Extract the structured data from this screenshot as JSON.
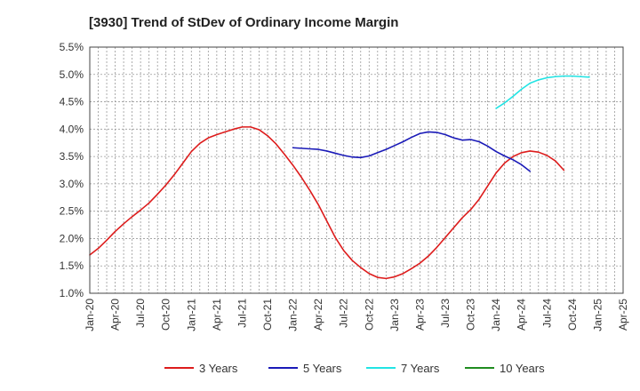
{
  "chart_data": {
    "type": "line",
    "title": "[3930]  Trend of StDev of Ordinary Income Margin",
    "xlabel": "",
    "ylabel": "",
    "ylim": [
      1.0,
      5.5
    ],
    "yticks": [
      "1.0%",
      "1.5%",
      "2.0%",
      "2.5%",
      "3.0%",
      "3.5%",
      "4.0%",
      "4.5%",
      "5.0%",
      "5.5%"
    ],
    "ytick_values": [
      1.0,
      1.5,
      2.0,
      2.5,
      3.0,
      3.5,
      4.0,
      4.5,
      5.0,
      5.5
    ],
    "xticks": [
      "Jan-20",
      "Apr-20",
      "Jul-20",
      "Oct-20",
      "Jan-21",
      "Apr-21",
      "Jul-21",
      "Oct-21",
      "Jan-22",
      "Apr-22",
      "Jul-22",
      "Oct-22",
      "Jan-23",
      "Apr-23",
      "Jul-23",
      "Oct-23",
      "Jan-24",
      "Apr-24",
      "Jul-24",
      "Oct-24",
      "Jan-25",
      "Apr-25"
    ],
    "grid": true,
    "legend_position": "bottom",
    "series": [
      {
        "name": "3 Years",
        "color": "#dd1c1c",
        "start_index": 0,
        "values": [
          1.7,
          1.82,
          1.97,
          2.13,
          2.27,
          2.4,
          2.52,
          2.65,
          2.81,
          2.98,
          3.17,
          3.38,
          3.59,
          3.74,
          3.84,
          3.9,
          3.95,
          4.0,
          4.04,
          4.04,
          3.99,
          3.88,
          3.73,
          3.54,
          3.34,
          3.12,
          2.88,
          2.62,
          2.32,
          2.02,
          1.78,
          1.6,
          1.47,
          1.36,
          1.29,
          1.27,
          1.3,
          1.36,
          1.45,
          1.55,
          1.68,
          1.84,
          2.02,
          2.2,
          2.38,
          2.53,
          2.72,
          2.96,
          3.2,
          3.38,
          3.5,
          3.57,
          3.6,
          3.58,
          3.52,
          3.42,
          3.25
        ]
      },
      {
        "name": "5 Years",
        "color": "#1a1ab8",
        "start_index": 24,
        "values": [
          3.66,
          3.65,
          3.64,
          3.63,
          3.6,
          3.56,
          3.52,
          3.49,
          3.48,
          3.51,
          3.57,
          3.63,
          3.7,
          3.77,
          3.85,
          3.92,
          3.95,
          3.94,
          3.9,
          3.84,
          3.8,
          3.81,
          3.77,
          3.69,
          3.59,
          3.51,
          3.44,
          3.35,
          3.23
        ]
      },
      {
        "name": "7 Years",
        "color": "#22e4e4",
        "start_index": 48,
        "values": [
          4.38,
          4.48,
          4.6,
          4.73,
          4.84,
          4.9,
          4.94,
          4.96,
          4.97,
          4.97,
          4.96,
          4.95
        ]
      },
      {
        "name": "10 Years",
        "color": "#1f8c1f",
        "start_index": 0,
        "values": []
      }
    ]
  }
}
